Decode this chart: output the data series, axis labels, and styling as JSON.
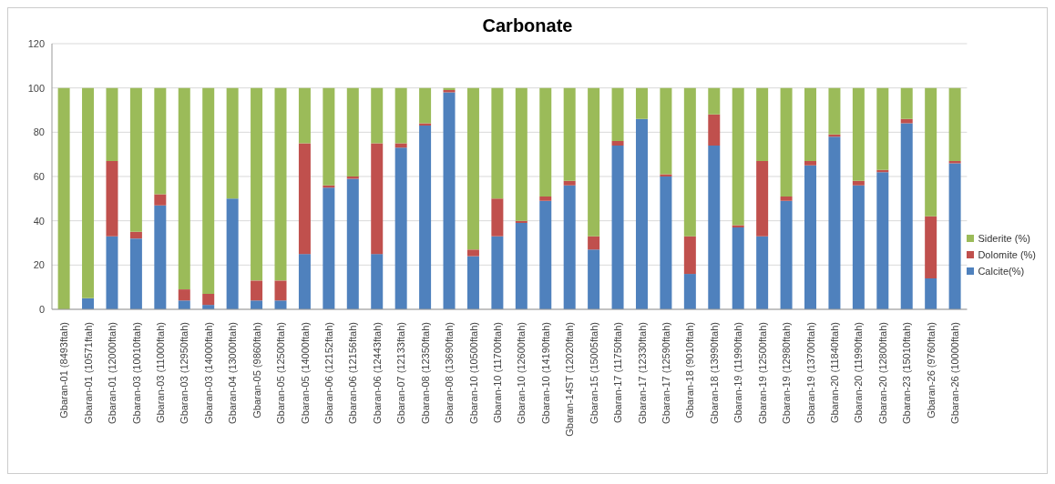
{
  "chart_data": {
    "type": "bar",
    "title": "Carbonate",
    "stacked": true,
    "grid": "y",
    "legend": "right",
    "categories": [
      "Gbaran-01 (8493ftah)",
      "Gbaran-01 (10571ftah)",
      "Gbaran-01 (12000ftah)",
      "Gbaran-03 (10010ftah)",
      "Gbaran-03 (11000ftah)",
      "Gbaran-03 (12950ftah)",
      "Gbaran-03 (14000ftah)",
      "Gbaran-04 (13000ftah)",
      "Gbaran-05 (9860ftah)",
      "Gbaran-05 (12500ftah)",
      "Gbaran-05 (14000ftah)",
      "Gbaran-06 (12152ftah)",
      "Gbaran-06 (12156ftah)",
      "Gbaran-06 (12443ftah)",
      "Gbaran-07 (12133ftah)",
      "Gbaran-08 (12350ftah)",
      "Gbaran-08 (13690ftah)",
      "Gbaran-10 (10500ftah)",
      "Gbaran-10 (11700ftah)",
      "Gbaran-10 (12600ftah)",
      "Gbaran-10 (14190ftah)",
      "Gbaran-14ST (12020ftah)",
      "Gbaran-15 (15005ftah)",
      "Gbaran-17 (11750ftah)",
      "Gbaran-17 (12330ftah)",
      "Gbaran-17 (12590ftah)",
      "Gbaran-18 (9010ftah)",
      "Gbaran-18 (13990ftah)",
      "Gbaran-19 (11990ftah)",
      "Gbaran-19 (12500ftah)",
      "Gbaran-19 (12980ftah)",
      "Gbaran-19 (13700ftah)",
      "Gbaran-20 (11840ftah)",
      "Gbaran-20 (11990ftah)",
      "Gbaran-20 (12800ftah)",
      "Gbaran-23 (15010ftah)",
      "Gbaran-26 (9760ftah)",
      "Gbaran-26 (10000ftah)"
    ],
    "series": [
      {
        "name": "Calcite(%)",
        "color": "#4f81bd",
        "values": [
          0,
          5,
          33,
          32,
          47,
          4,
          2,
          50,
          4,
          4,
          25,
          55,
          59,
          25,
          73,
          83,
          98,
          24,
          33,
          39,
          49,
          56,
          27,
          74,
          86,
          60,
          16,
          74,
          37,
          33,
          49,
          65,
          78,
          56,
          62,
          84,
          14,
          66
        ]
      },
      {
        "name": "Dolomite (%)",
        "color": "#c0504d",
        "values": [
          0,
          0,
          34,
          3,
          5,
          5,
          5,
          0,
          9,
          9,
          50,
          1,
          1,
          50,
          2,
          1,
          1,
          3,
          17,
          1,
          2,
          2,
          6,
          2,
          0,
          1,
          17,
          14,
          1,
          34,
          2,
          2,
          1,
          2,
          1,
          2,
          28,
          1
        ]
      },
      {
        "name": "Siderite (%)",
        "color": "#9bbb59",
        "values": [
          100,
          95,
          33,
          65,
          48,
          91,
          93,
          50,
          87,
          87,
          25,
          44,
          40,
          25,
          25,
          16,
          1,
          73,
          50,
          60,
          49,
          42,
          67,
          24,
          14,
          39,
          67,
          12,
          62,
          33,
          49,
          33,
          21,
          42,
          37,
          14,
          58,
          33
        ]
      }
    ],
    "ylim": [
      0,
      120
    ],
    "yticks": [
      0,
      20,
      40,
      60,
      80,
      100,
      120
    ]
  }
}
